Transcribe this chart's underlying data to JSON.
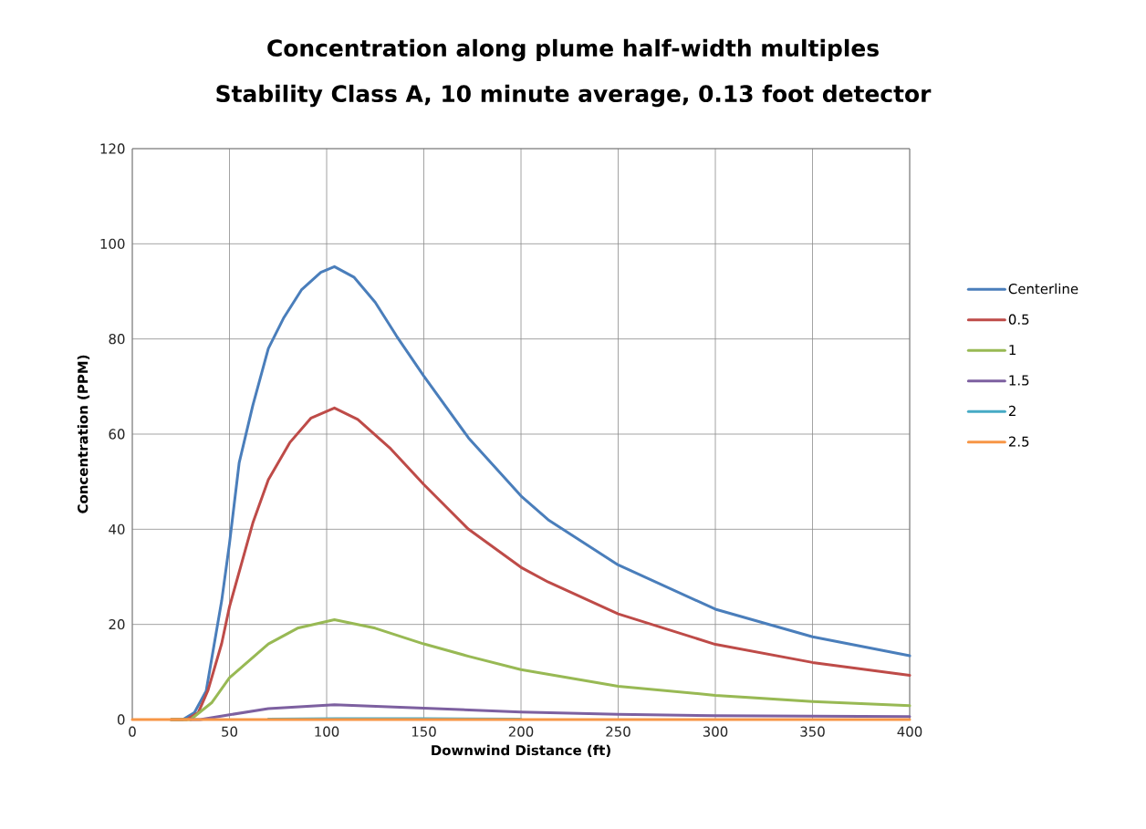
{
  "chart_data": {
    "type": "line",
    "title": "Concentration along plume half-width multiples",
    "subtitle": "Stability Class A, 10 minute average, 0.13 foot detector",
    "xlabel": "Downwind Distance (ft)",
    "ylabel": "Concentration (PPM)",
    "xlim": [
      0,
      400
    ],
    "xticks": [
      0,
      50,
      100,
      150,
      200,
      250,
      300,
      350,
      400
    ],
    "ylim": [
      0,
      120
    ],
    "yticks": [
      0,
      20,
      40,
      60,
      80,
      100,
      120
    ],
    "grid": true,
    "legend": "right",
    "marker": "none",
    "line_style": "solid",
    "series": [
      {
        "name": "Centerline",
        "color": "#4a7ebb",
        "x": [
          20,
          26,
          32,
          38,
          46,
          50,
          55,
          62,
          70,
          78,
          87,
          97,
          104,
          114,
          125,
          136,
          150,
          173,
          200,
          214,
          250,
          300,
          350,
          400
        ],
        "values": [
          0,
          0,
          1.5,
          6,
          25,
          37,
          54,
          66,
          78,
          84.5,
          90.3,
          94,
          95.2,
          93,
          87.7,
          80.6,
          72.2,
          59.2,
          47,
          42,
          32.5,
          23.2,
          17.4,
          13.4
        ]
      },
      {
        "name": "0.5",
        "color": "#be4b48",
        "x": [
          20,
          28,
          34,
          39,
          46,
          50,
          62,
          70,
          81,
          92,
          104,
          116,
          133,
          150,
          173,
          200,
          214,
          250,
          300,
          350,
          400
        ],
        "values": [
          0,
          0,
          1.5,
          6.2,
          16,
          23.7,
          41.3,
          50.4,
          58.2,
          63.4,
          65.5,
          63.1,
          56.9,
          49.4,
          40,
          32,
          28.9,
          22.2,
          15.8,
          12,
          9.3
        ]
      },
      {
        "name": "1",
        "color": "#98b954",
        "x": [
          20,
          30,
          41,
          50,
          70,
          85,
          104,
          125,
          150,
          173,
          200,
          250,
          300,
          350,
          400
        ],
        "values": [
          0,
          0,
          3.6,
          8.8,
          15.9,
          19.2,
          21,
          19.2,
          15.9,
          13.3,
          10.5,
          7,
          5.1,
          3.8,
          2.9
        ]
      },
      {
        "name": "1.5",
        "color": "#7d60a0",
        "x": [
          30,
          35,
          50,
          70,
          104,
          150,
          200,
          250,
          300,
          350,
          400
        ],
        "values": [
          0,
          0,
          1,
          2.3,
          3.1,
          2.4,
          1.6,
          1.1,
          0.8,
          0.7,
          0.6
        ]
      },
      {
        "name": "2",
        "color": "#46aac5",
        "x": [
          70,
          105,
          150,
          200
        ],
        "values": [
          0.1,
          0.2,
          0.2,
          0.1
        ]
      },
      {
        "name": "2.5",
        "color": "#f79646",
        "x": [
          0,
          100,
          200,
          300,
          400
        ],
        "values": [
          0,
          0,
          0,
          0,
          0
        ]
      }
    ]
  }
}
